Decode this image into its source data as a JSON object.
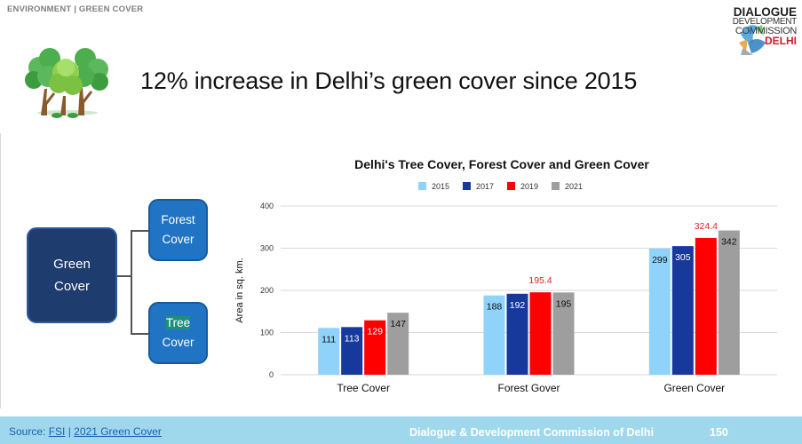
{
  "header": {
    "section_tag": "ENVIRONMENT | GREEN COVER",
    "logo": {
      "line1": "DIALOGUE",
      "line2": "DEVELOPMENT",
      "line3": "COMMISSION",
      "line4": "DELHI"
    },
    "headline": "12% increase in Delhi’s green cover since 2015"
  },
  "diagram": {
    "main": {
      "line1": "Green",
      "line2": "Cover"
    },
    "forest": {
      "line1": "Forest",
      "line2": "Cover"
    },
    "tree": {
      "line1": "Tree",
      "line2": "Cover"
    }
  },
  "colors": {
    "2015": "#8fd3fb",
    "2017": "#17399b",
    "2019": "#ff0000",
    "2021": "#9e9e9e",
    "highlight_label": "#e02020"
  },
  "chart_data": {
    "type": "bar",
    "title": "Delhi's Tree Cover, Forest Cover and Green Cover",
    "xlabel": "",
    "ylabel": "Area in sq. km.",
    "categories": [
      "Tree Cover",
      "Forest Gover",
      "Green Cover"
    ],
    "series": [
      {
        "name": "2015",
        "values": [
          111,
          188,
          299
        ],
        "labels": [
          "111",
          "188",
          "299"
        ]
      },
      {
        "name": "2017",
        "values": [
          113,
          192,
          305
        ],
        "labels": [
          "113",
          "192",
          "305"
        ]
      },
      {
        "name": "2019",
        "values": [
          129,
          195.4,
          324.4
        ],
        "labels": [
          "129",
          "195.4",
          "324.4"
        ]
      },
      {
        "name": "2021",
        "values": [
          147,
          195,
          342
        ],
        "labels": [
          "147",
          "195",
          "342"
        ]
      }
    ],
    "ylim": [
      0,
      400
    ],
    "yticks": [
      0,
      100,
      200,
      300,
      400
    ],
    "grid": true,
    "legend": "top"
  },
  "footer": {
    "source_prefix": "Source: ",
    "source_link1": "FSI",
    "separator": " | ",
    "source_link2": "2021 Green Cover",
    "center_text": "Dialogue & Development Commission of Delhi",
    "page_number": "150"
  }
}
